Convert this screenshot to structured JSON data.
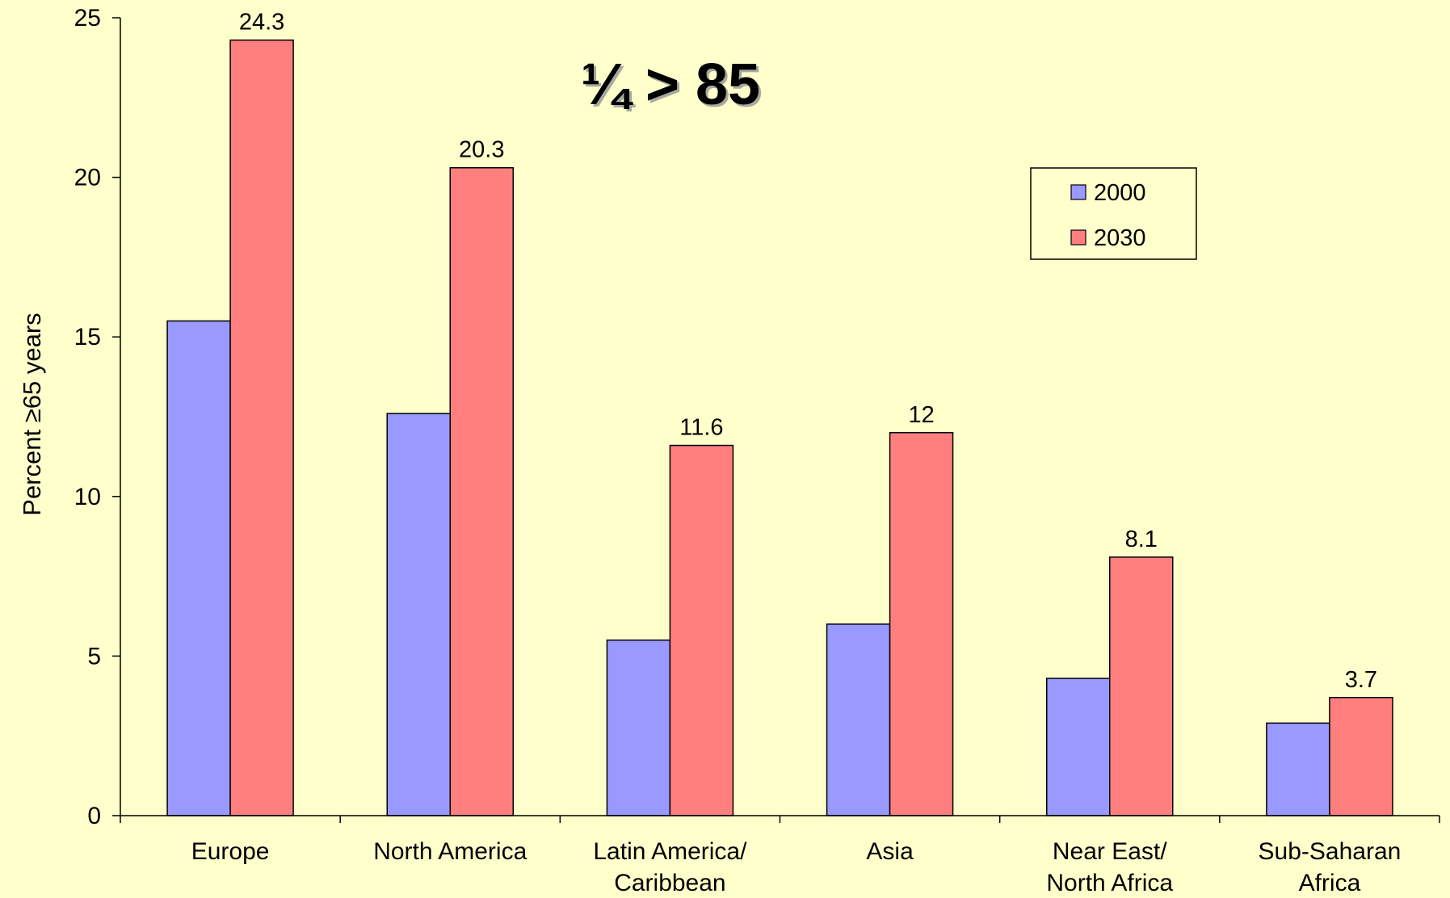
{
  "chart_data": {
    "type": "bar",
    "title": "",
    "annotation": "¼ > 85",
    "xlabel": "",
    "ylabel": "Percent ≥65 years",
    "ylim": [
      0,
      25
    ],
    "yticks": [
      0,
      5,
      10,
      15,
      20,
      25
    ],
    "grid": false,
    "legend_position": "top-right",
    "categories": [
      [
        "Europe"
      ],
      [
        "North America"
      ],
      [
        "Latin America/",
        "Caribbean"
      ],
      [
        "Asia"
      ],
      [
        "Near East/",
        "North Africa"
      ],
      [
        "Sub-Saharan",
        "Africa"
      ]
    ],
    "series": [
      {
        "name": "2000",
        "color": "#9999FF",
        "values": [
          15.5,
          12.6,
          5.5,
          6.0,
          4.3,
          2.9
        ],
        "labels": []
      },
      {
        "name": "2030",
        "color": "#FF7F7F",
        "values": [
          24.3,
          20.3,
          11.6,
          12.0,
          8.1,
          3.7
        ],
        "labels": [
          "24.3",
          "20.3",
          "11.6",
          "12",
          "8.1",
          "3.7"
        ]
      }
    ]
  },
  "colors": {
    "background": "#FFFFCC",
    "axis": "#000000"
  }
}
